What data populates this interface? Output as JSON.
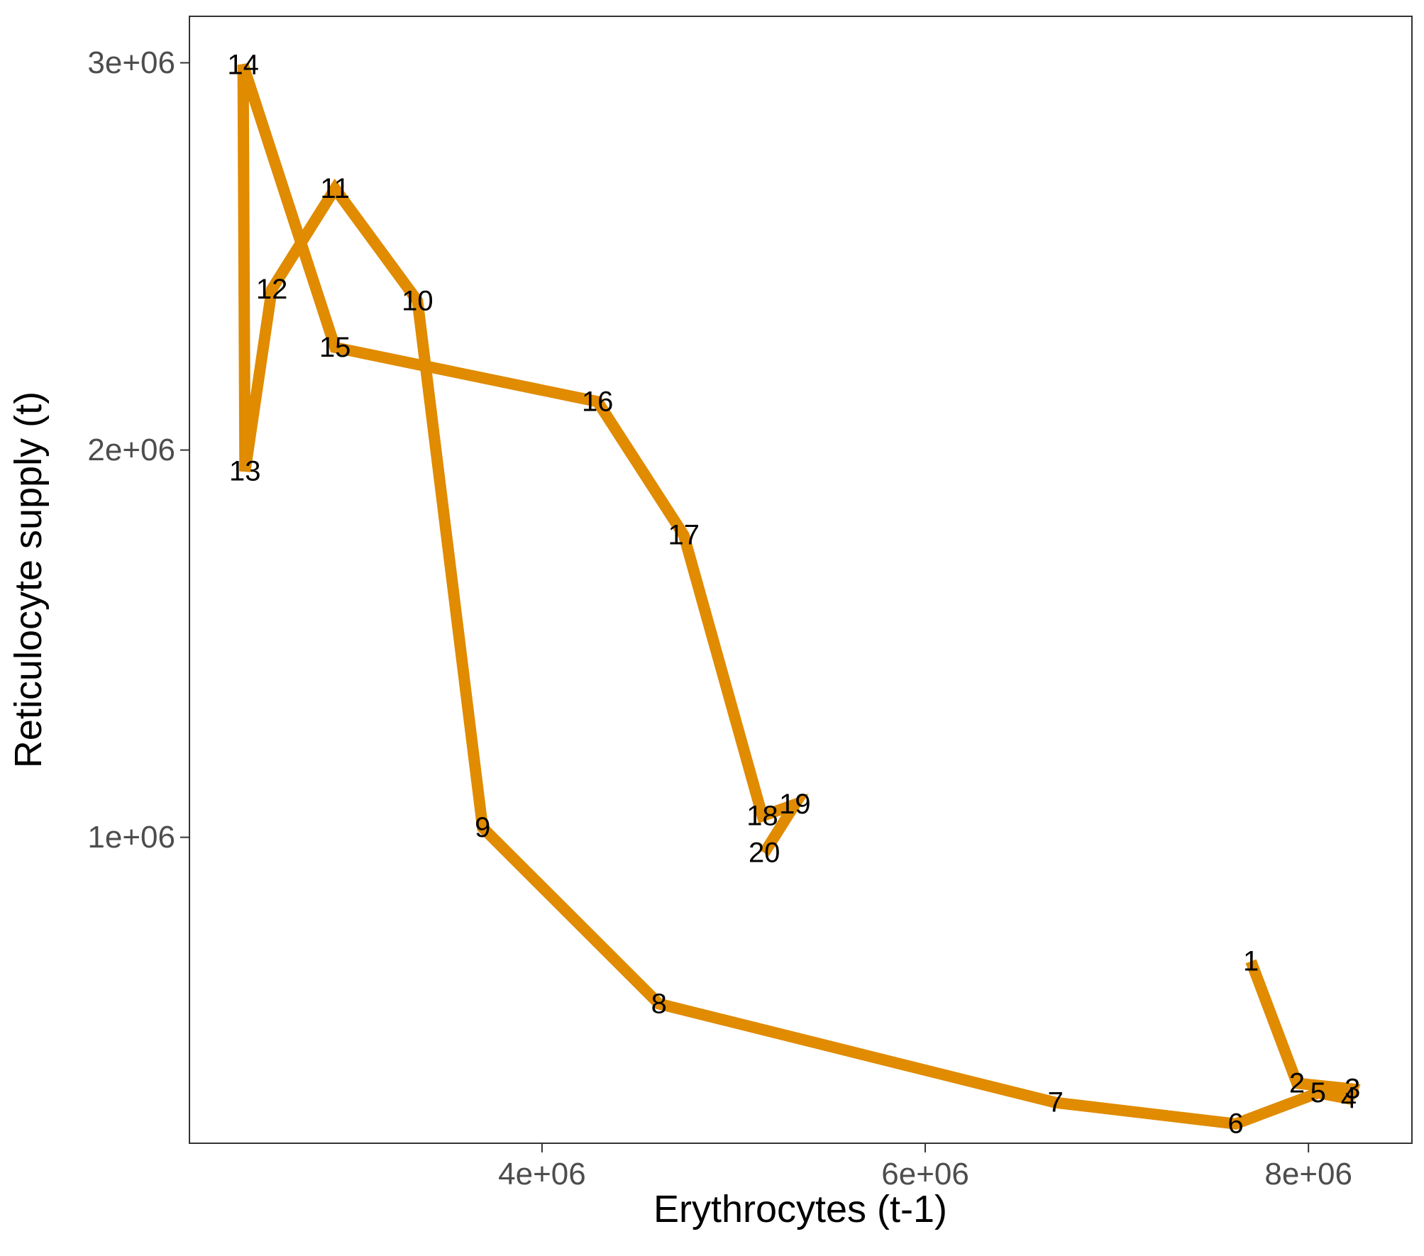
{
  "chart_data": {
    "type": "line",
    "xlabel": "Erythrocytes (t-1)",
    "ylabel": "Reticulocyte supply (t)",
    "xlim": [
      2160000,
      8540000
    ],
    "ylim": [
      210000,
      3120000
    ],
    "x_ticks": [
      {
        "value": 4000000,
        "label": "4e+06"
      },
      {
        "value": 6000000,
        "label": "6e+06"
      },
      {
        "value": 8000000,
        "label": "8e+06"
      }
    ],
    "y_ticks": [
      {
        "value": 1000000,
        "label": "1e+06"
      },
      {
        "value": 2000000,
        "label": "2e+06"
      },
      {
        "value": 3000000,
        "label": "3e+06"
      }
    ],
    "grid": false,
    "line_color": "#E08B00",
    "points": [
      {
        "label": "1",
        "x": 7700000,
        "y": 680000
      },
      {
        "label": "2",
        "x": 7940000,
        "y": 365000
      },
      {
        "label": "3",
        "x": 8230000,
        "y": 350000
      },
      {
        "label": "4",
        "x": 8210000,
        "y": 325000
      },
      {
        "label": "5",
        "x": 8050000,
        "y": 340000
      },
      {
        "label": "6",
        "x": 7620000,
        "y": 260000
      },
      {
        "label": "7",
        "x": 6680000,
        "y": 315000
      },
      {
        "label": "8",
        "x": 4610000,
        "y": 570000
      },
      {
        "label": "9",
        "x": 3690000,
        "y": 1025000
      },
      {
        "label": "10",
        "x": 3350000,
        "y": 2385000
      },
      {
        "label": "11",
        "x": 2920000,
        "y": 2675000
      },
      {
        "label": "12",
        "x": 2590000,
        "y": 2415000
      },
      {
        "label": "13",
        "x": 2450000,
        "y": 1945000
      },
      {
        "label": "14",
        "x": 2440000,
        "y": 2995000
      },
      {
        "label": "15",
        "x": 2920000,
        "y": 2265000
      },
      {
        "label": "16",
        "x": 4290000,
        "y": 2125000
      },
      {
        "label": "17",
        "x": 4740000,
        "y": 1780000
      },
      {
        "label": "18",
        "x": 5150000,
        "y": 1055000
      },
      {
        "label": "19",
        "x": 5320000,
        "y": 1085000
      },
      {
        "label": "20",
        "x": 5160000,
        "y": 960000
      }
    ]
  }
}
